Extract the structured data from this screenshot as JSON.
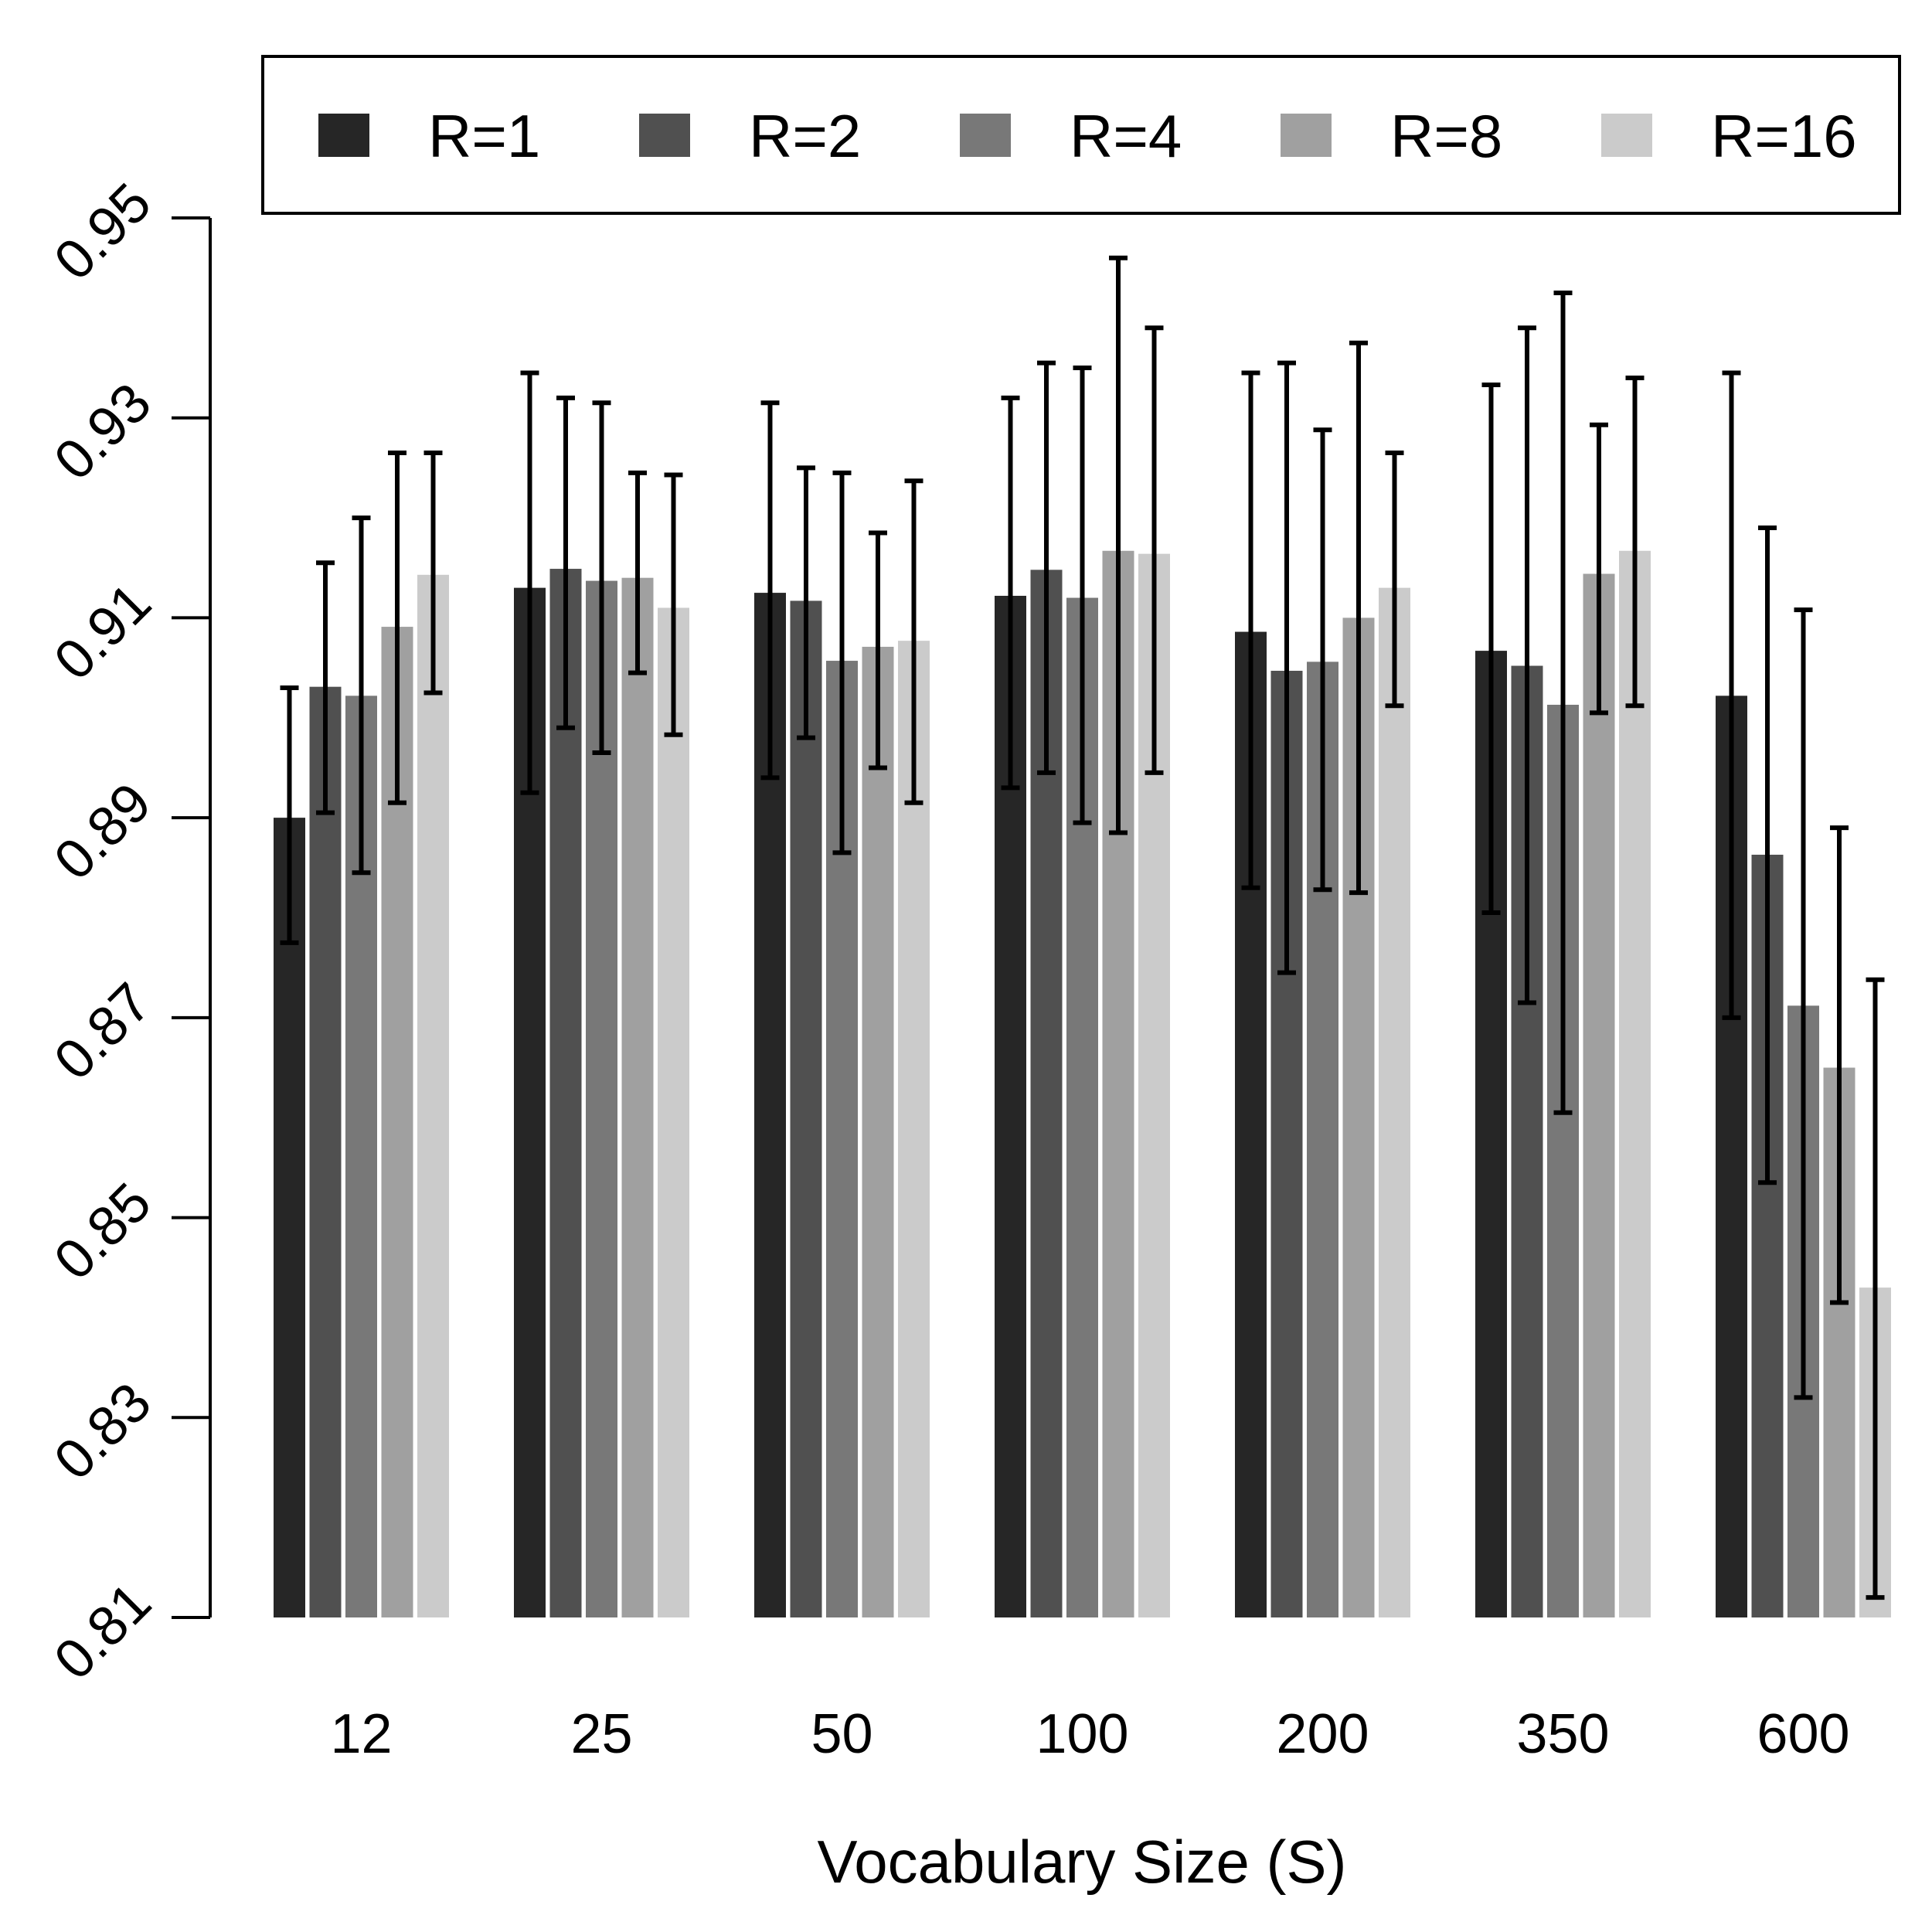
{
  "chart_data": {
    "type": "bar",
    "title": "",
    "xlabel": "Vocabulary Size (S)",
    "ylabel": "",
    "ylim": [
      0.81,
      0.95
    ],
    "yticks": [
      "0.81",
      "0.83",
      "0.85",
      "0.87",
      "0.89",
      "0.91",
      "0.93",
      "0.95"
    ],
    "categories": [
      "12",
      "25",
      "50",
      "100",
      "200",
      "350",
      "600"
    ],
    "legend_position": "top",
    "series": [
      {
        "name": "R=1",
        "color": "#262626",
        "values": [
          0.89,
          0.913,
          0.9125,
          0.9122,
          0.9086,
          0.9067,
          0.9022
        ],
        "err_low": [
          0.8775,
          0.8925,
          0.894,
          0.893,
          0.883,
          0.8805,
          0.87
        ],
        "err_high": [
          0.903,
          0.9345,
          0.9315,
          0.932,
          0.9345,
          0.9333,
          0.9345
        ]
      },
      {
        "name": "R=2",
        "color": "#505050",
        "values": [
          0.9031,
          0.9149,
          0.9117,
          0.9148,
          0.9047,
          0.9052,
          0.8863
        ],
        "err_low": [
          0.8905,
          0.899,
          0.898,
          0.8945,
          0.8745,
          0.8715,
          0.8535
        ],
        "err_high": [
          0.9155,
          0.932,
          0.925,
          0.9355,
          0.9355,
          0.939,
          0.919
        ]
      },
      {
        "name": "R=4",
        "color": "#787878",
        "values": [
          0.9022,
          0.9137,
          0.9057,
          0.912,
          0.9056,
          0.9013,
          0.8712
        ],
        "err_low": [
          0.8845,
          0.8965,
          0.8865,
          0.8895,
          0.8828,
          0.8605,
          0.832
        ],
        "err_high": [
          0.92,
          0.9315,
          0.9245,
          0.935,
          0.9288,
          0.9425,
          0.9108
        ]
      },
      {
        "name": "R=8",
        "color": "#a0a0a0",
        "values": [
          0.9091,
          0.914,
          0.9071,
          0.9167,
          0.91,
          0.9144,
          0.865
        ],
        "err_low": [
          0.8915,
          0.9045,
          0.895,
          0.8885,
          0.8825,
          0.9005,
          0.8415
        ],
        "err_high": [
          0.9265,
          0.9245,
          0.9185,
          0.946,
          0.9375,
          0.9293,
          0.889
        ]
      },
      {
        "name": "R=16",
        "color": "#cbcbcb",
        "values": [
          0.9143,
          0.911,
          0.9077,
          0.9164,
          0.913,
          0.9167,
          0.843
        ],
        "err_low": [
          0.9025,
          0.8983,
          0.8915,
          0.8945,
          0.9012,
          0.9012,
          0.812
        ],
        "err_high": [
          0.9265,
          0.9243,
          0.9237,
          0.939,
          0.9265,
          0.934,
          0.8738
        ]
      }
    ]
  }
}
